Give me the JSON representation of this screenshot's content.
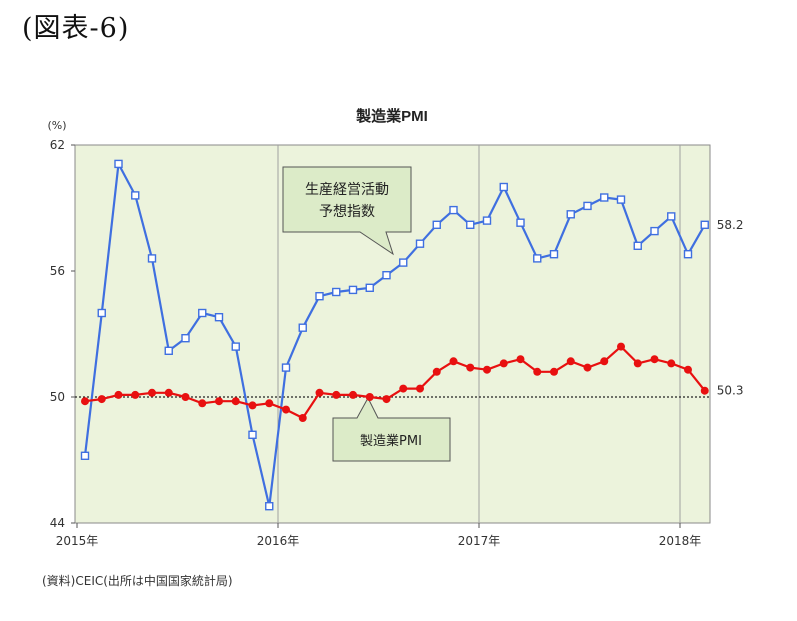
{
  "figure_label": "(図表-6)",
  "source_note": "(資料)CEIC(出所は中国国家統計局)",
  "colors": {
    "plot_bg": "#ECF3DC",
    "blue": "#3F6FE0",
    "red": "#E81010",
    "callout_bg": "#DCEBC8",
    "grid": "#A0A0A0"
  },
  "chart_data": {
    "type": "line",
    "title": "製造業PMI",
    "ylabel": "(%)",
    "ylim": [
      44,
      62
    ],
    "y_ticks": [
      "62",
      "56",
      "50",
      "44"
    ],
    "x_tick_labels": [
      "2015年",
      "2016年",
      "2017年",
      "2018年"
    ],
    "reference_line": 50,
    "series": [
      {
        "name": "生産経営活動予想指数",
        "marker": "open-square",
        "values": [
          47.2,
          54.0,
          61.1,
          59.6,
          56.6,
          52.2,
          52.8,
          54.0,
          53.8,
          52.4,
          48.2,
          44.8,
          51.4,
          53.3,
          54.8,
          55.0,
          55.1,
          55.2,
          55.8,
          56.4,
          57.3,
          58.2,
          58.9,
          58.2,
          58.4,
          60.0,
          58.3,
          56.6,
          56.8,
          58.7,
          59.1,
          59.5,
          59.4,
          57.2,
          57.9,
          58.6,
          56.8,
          58.2
        ],
        "end_label": "58.2"
      },
      {
        "name": "製造業PMI",
        "marker": "filled-circle",
        "values": [
          49.8,
          49.9,
          50.1,
          50.1,
          50.2,
          50.2,
          50.0,
          49.7,
          49.8,
          49.8,
          49.6,
          49.7,
          49.4,
          49.0,
          50.2,
          50.1,
          50.1,
          50.0,
          49.9,
          50.4,
          50.4,
          51.2,
          51.7,
          51.4,
          51.3,
          51.6,
          51.8,
          51.2,
          51.2,
          51.7,
          51.4,
          51.7,
          52.4,
          51.6,
          51.8,
          51.6,
          51.3,
          50.3
        ],
        "end_label": "50.3"
      }
    ],
    "callouts": [
      {
        "text_line1": "生産経営活動",
        "text_line2": "予想指数"
      },
      {
        "text_line1": "製造業PMI"
      }
    ],
    "grid": "vertical year separators only",
    "legend": "callout boxes"
  }
}
